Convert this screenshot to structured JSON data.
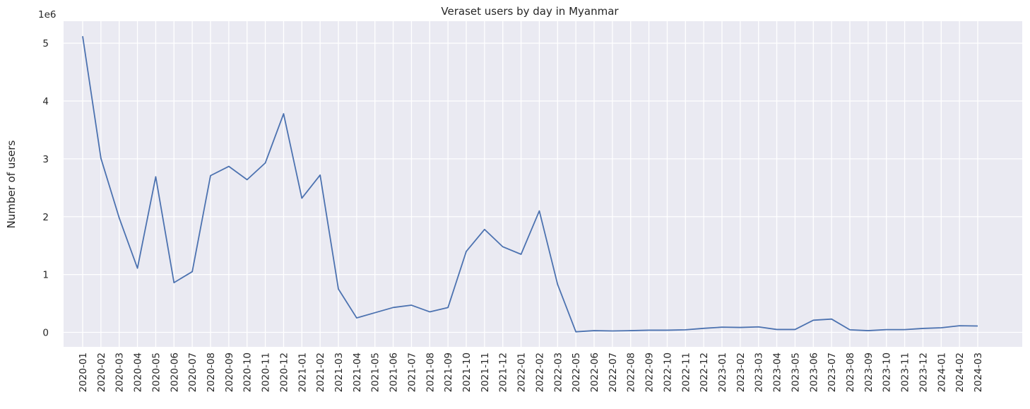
{
  "chart_data": {
    "type": "line",
    "title": "Veraset users by day in Myanmar",
    "xlabel": "",
    "ylabel": "Number of users",
    "y_offset_text": "1e6",
    "ylim": [
      -250000,
      5380000
    ],
    "yticks": [
      0,
      1000000,
      2000000,
      3000000,
      4000000,
      5000000
    ],
    "ytick_labels": [
      "0",
      "1",
      "2",
      "3",
      "4",
      "5"
    ],
    "grid": true,
    "colors": {
      "background": "#eaeaf2",
      "grid": "#ffffff",
      "line": "#4c72b0",
      "text": "#262626"
    },
    "x": [
      "2020-01",
      "2020-02",
      "2020-03",
      "2020-04",
      "2020-05",
      "2020-06",
      "2020-07",
      "2020-08",
      "2020-09",
      "2020-10",
      "2020-11",
      "2020-12",
      "2021-01",
      "2021-02",
      "2021-03",
      "2021-04",
      "2021-05",
      "2021-06",
      "2021-07",
      "2021-08",
      "2021-09",
      "2021-10",
      "2021-11",
      "2021-12",
      "2022-01",
      "2022-02",
      "2022-03",
      "2022-05",
      "2022-06",
      "2022-07",
      "2022-08",
      "2022-09",
      "2022-10",
      "2022-11",
      "2022-12",
      "2023-01",
      "2023-02",
      "2023-03",
      "2023-04",
      "2023-05",
      "2023-06",
      "2023-07",
      "2023-08",
      "2023-09",
      "2023-10",
      "2023-11",
      "2023-12",
      "2024-01",
      "2024-02",
      "2024-03"
    ],
    "series": [
      {
        "name": "",
        "values": [
          5120000,
          3010000,
          1980000,
          1110000,
          2690000,
          860000,
          1050000,
          2710000,
          2870000,
          2640000,
          2930000,
          3780000,
          2320000,
          2720000,
          750000,
          250000,
          340000,
          430000,
          470000,
          355000,
          430000,
          1400000,
          1780000,
          1480000,
          1350000,
          2100000,
          830000,
          10000,
          30000,
          25000,
          30000,
          38000,
          38000,
          45000,
          70000,
          90000,
          85000,
          95000,
          50000,
          50000,
          210000,
          230000,
          45000,
          30000,
          48000,
          48000,
          68000,
          80000,
          115000,
          110000
        ]
      }
    ]
  }
}
